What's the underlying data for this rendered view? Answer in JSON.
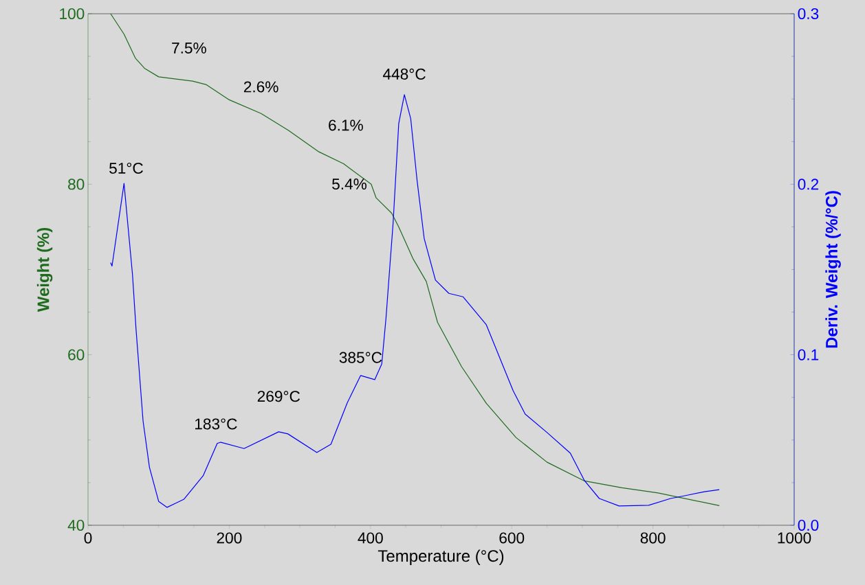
{
  "chart_data": {
    "type": "line",
    "xlabel": "Temperature (°C)",
    "ylabel": "Weight (%)",
    "y2label": "Deriv. Weight (%/°C)",
    "xlim": [
      0,
      1000
    ],
    "xticks": [
      0,
      200,
      400,
      600,
      800,
      1000
    ],
    "ylim": [
      40,
      100
    ],
    "yticks": [
      40,
      60,
      80,
      100
    ],
    "y2lim": [
      0,
      0.3
    ],
    "y2ticks": [
      {
        "value": 0,
        "label": "0.0"
      },
      0.1,
      0.2,
      0.3
    ],
    "series": [
      {
        "axis": "y",
        "color": "#1e6b1e",
        "x": [
          32,
          51,
          67,
          80,
          100,
          148,
          167,
          200,
          245,
          284,
          327,
          362,
          401,
          408,
          430,
          440,
          460,
          479,
          495,
          529,
          564,
          606,
          650,
          703,
          756,
          807,
          894
        ],
        "values": [
          100,
          97.6,
          94.8,
          93.6,
          92.6,
          92.1,
          91.7,
          89.9,
          88.3,
          86.3,
          83.8,
          82.4,
          80.0,
          78.4,
          76.6,
          75.0,
          71.3,
          68.6,
          63.8,
          58.6,
          54.3,
          50.3,
          47.4,
          45.2,
          44.4,
          43.8,
          42.3
        ]
      },
      {
        "axis": "y2",
        "color": "#0000ff",
        "x": [
          32,
          34,
          51,
          63,
          68,
          78,
          87,
          100,
          112,
          136,
          163,
          183,
          188,
          221,
          270,
          283,
          324,
          344,
          367,
          386,
          406,
          416,
          422,
          428,
          432,
          440,
          448,
          457,
          466,
          476,
          492,
          511,
          531,
          564,
          581,
          602,
          619,
          650,
          683,
          703,
          724,
          752,
          794,
          825,
          845,
          873,
          894
        ],
        "values": [
          0.154,
          0.152,
          0.2005,
          0.147,
          0.115,
          0.061,
          0.034,
          0.014,
          0.0105,
          0.0153,
          0.029,
          0.048,
          0.0487,
          0.045,
          0.0548,
          0.0536,
          0.0427,
          0.0475,
          0.0717,
          0.0878,
          0.0854,
          0.0946,
          0.1216,
          0.155,
          0.177,
          0.2356,
          0.2525,
          0.2384,
          0.2022,
          0.1683,
          0.1438,
          0.136,
          0.134,
          0.1176,
          0.1003,
          0.0789,
          0.0652,
          0.0544,
          0.0423,
          0.0262,
          0.0157,
          0.0113,
          0.0117,
          0.0157,
          0.0173,
          0.0197,
          0.0209
        ]
      }
    ],
    "annotations": [
      "7.5%",
      "2.6%",
      "6.1%",
      "5.4%",
      "448°C",
      "51°C",
      "183°C",
      "269°C",
      "385°C"
    ]
  }
}
